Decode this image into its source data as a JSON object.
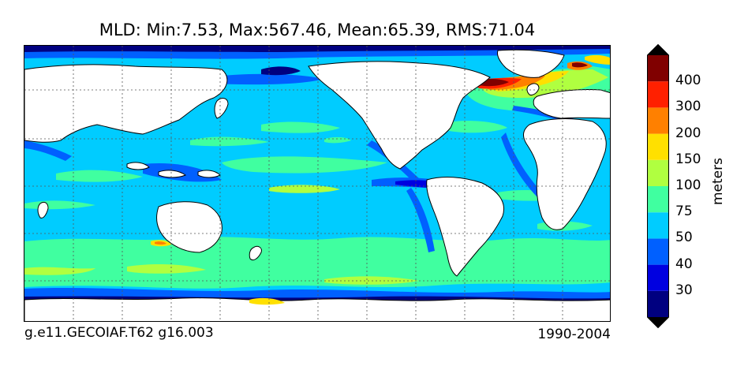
{
  "title": "MLD: Min:7.53, Max:567.46, Mean:65.39, RMS:71.04",
  "footer_left": "g.e11.GECOIAF.T62 g16.003",
  "footer_right": "1990-2004",
  "colorbar": {
    "unit": "meters",
    "ticks": [
      "30",
      "40",
      "50",
      "75",
      "100",
      "150",
      "200",
      "300",
      "400"
    ],
    "colors": [
      "#000080",
      "#0000e0",
      "#0060ff",
      "#00ccff",
      "#40ffa0",
      "#b0ff40",
      "#ffe000",
      "#ff8000",
      "#ff2000",
      "#800000"
    ]
  },
  "palette": {
    "land": "#ffffff",
    "ocean_base": "#00ccff",
    "level_75": "#40ffa0",
    "level_100": "#b0ff40",
    "level_40": "#0060ff",
    "level_30": "#0000e0",
    "level_deep_blue": "#000080",
    "level_150": "#ffe000",
    "level_200": "#ff8000",
    "level_300": "#ff2000",
    "level_400": "#800000"
  }
}
